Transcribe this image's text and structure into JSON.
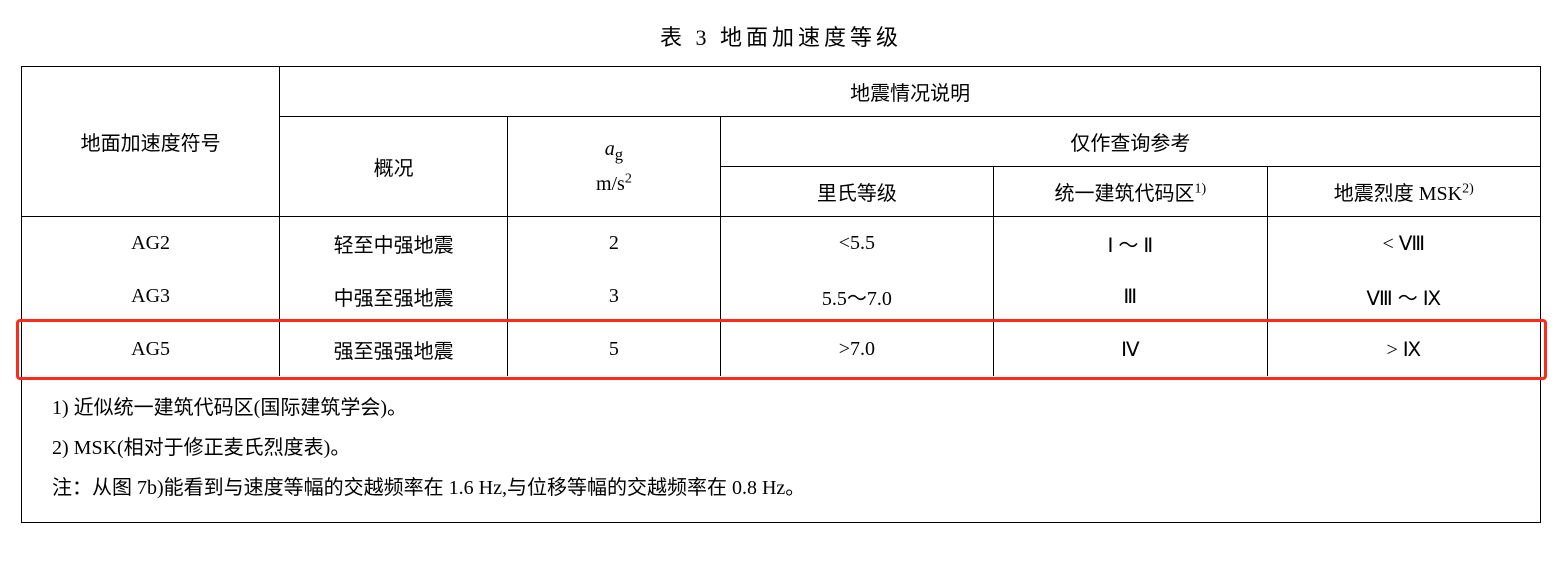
{
  "caption": "表 3  地面加速度等级",
  "headers": {
    "col_symbol": "地面加速度符号",
    "group_desc": "地震情况说明",
    "overview": "概况",
    "ag_symbol": "a",
    "ag_sub": "g",
    "ag_unit_base": "m/s",
    "ag_unit_exp": "2",
    "ref_group": "仅作查询参考",
    "richter": "里氏等级",
    "ubc": "统一建筑代码区",
    "ubc_sup": "1)",
    "msk": "地震烈度 MSK",
    "msk_sup": "2)"
  },
  "rows": [
    {
      "symbol": "AG2",
      "overview": "轻至中强地震",
      "ag": "2",
      "richter": "<5.5",
      "ubc": "Ⅰ ～ Ⅱ",
      "msk": "< Ⅷ"
    },
    {
      "symbol": "AG3",
      "overview": "中强至强地震",
      "ag": "3",
      "richter": "5.5～7.0",
      "ubc": "Ⅲ",
      "msk": "Ⅷ ～ Ⅸ"
    },
    {
      "symbol": "AG5",
      "overview": "强至强强地震",
      "ag": "5",
      "richter": ">7.0",
      "ubc": "Ⅳ",
      "msk": "> Ⅸ"
    }
  ],
  "footnotes": {
    "n1": "1) 近似统一建筑代码区(国际建筑学会)。",
    "n2": "2) MSK(相对于修正麦氏烈度表)。",
    "n3": "注：从图 7b)能看到与速度等幅的交越频率在 1.6 Hz,与位移等幅的交越频率在 0.8 Hz。"
  },
  "highlight": {
    "color": "#ff2a1a",
    "row_index": 2
  },
  "col_widths_pct": [
    17,
    15,
    14,
    18,
    18,
    18
  ]
}
